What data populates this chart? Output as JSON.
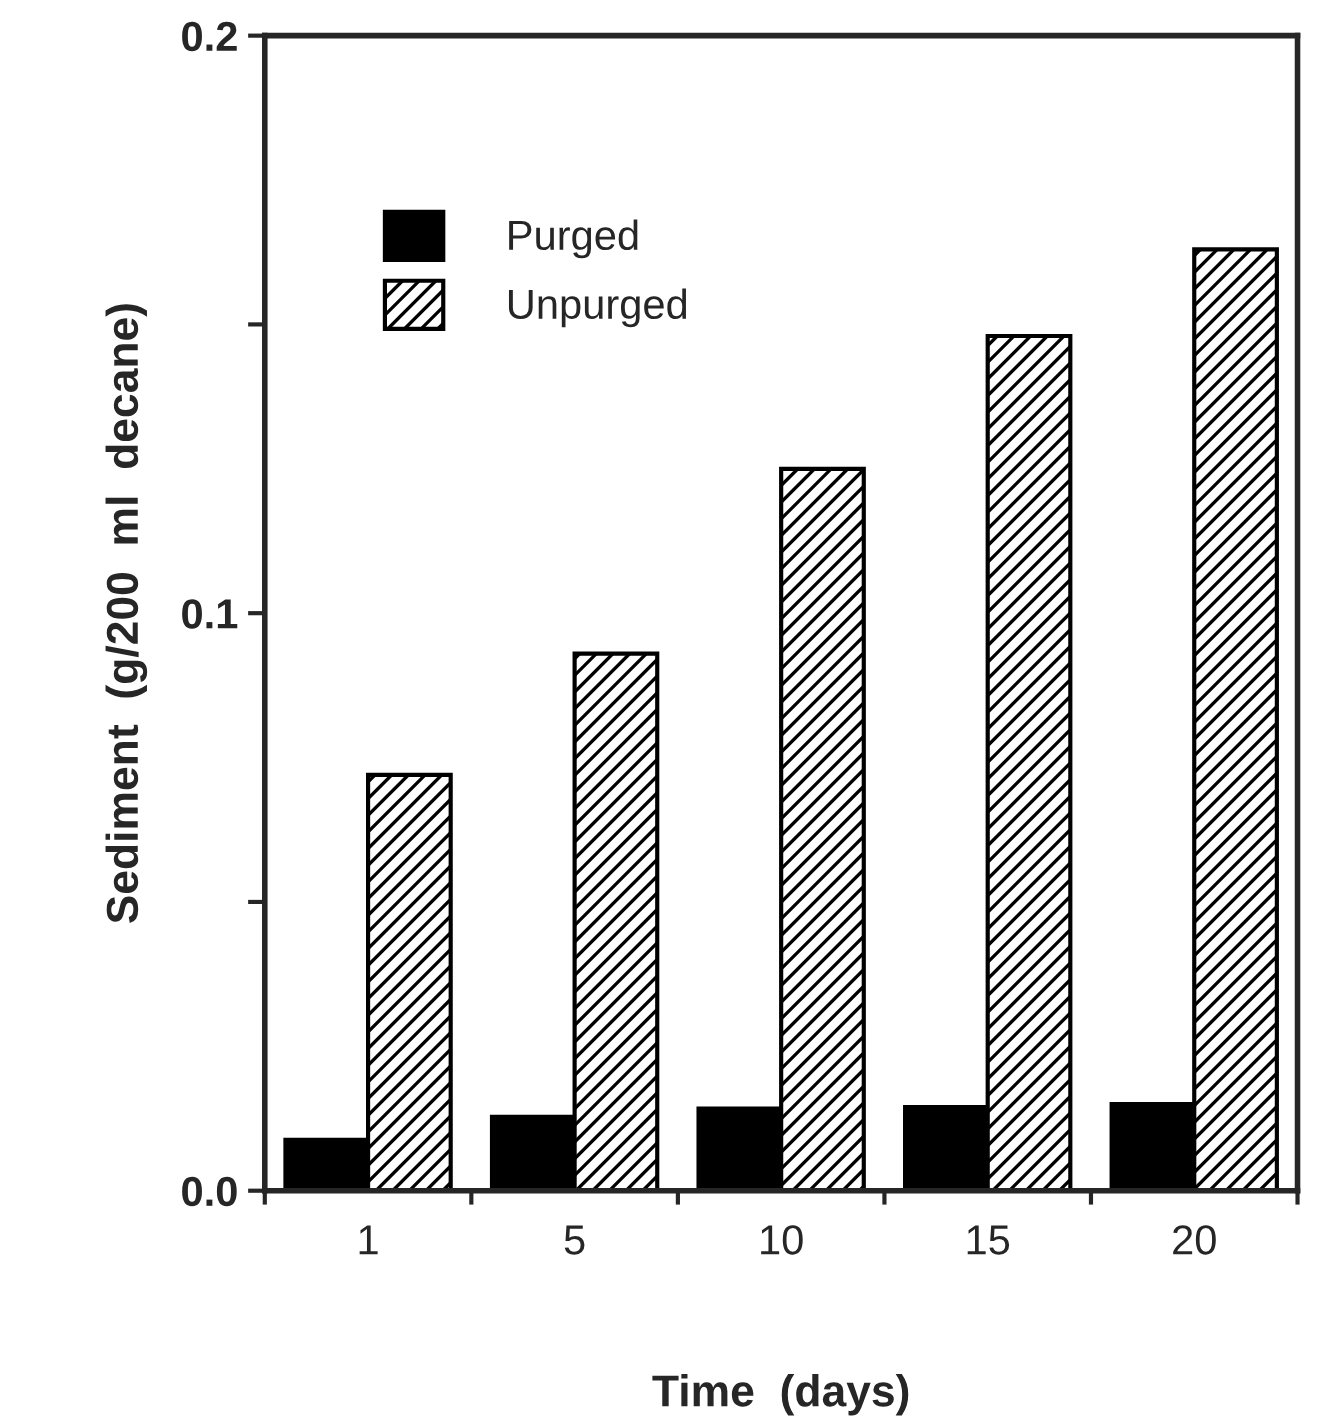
{
  "chart_data": {
    "type": "bar",
    "xlabel": "Time  (days)",
    "ylabel": "Sediment  (g/200  ml  decane)",
    "categories": [
      "1",
      "5",
      "10",
      "15",
      "20"
    ],
    "series": [
      {
        "name": "Purged",
        "color": "#000000",
        "values": [
          0.0088,
          0.0128,
          0.0142,
          0.0145,
          0.015
        ]
      },
      {
        "name": "Unpurged",
        "color": "#000000",
        "values": [
          0.072,
          0.093,
          0.125,
          0.148,
          0.163
        ]
      }
    ],
    "ylim": [
      0,
      0.2
    ],
    "yticks": [
      {
        "value": 0,
        "label": "0.0"
      },
      {
        "value": 0.05,
        "label": null
      },
      0.1,
      {
        "value": 0.15,
        "label": null
      },
      0.2
    ],
    "grid": false,
    "legend": "top left"
  }
}
